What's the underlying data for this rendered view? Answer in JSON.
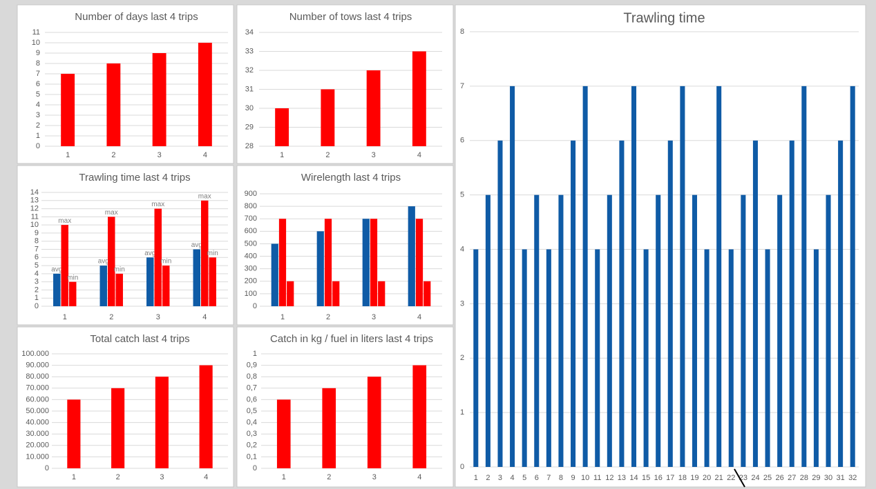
{
  "chart_data": [
    {
      "type": "bar",
      "title": "Number of days last 4 trips",
      "categories": [
        "1",
        "2",
        "3",
        "4"
      ],
      "values": [
        7,
        8,
        9,
        10
      ],
      "color": "#ff0000",
      "ylim": [
        0,
        11
      ],
      "yticks": [
        0,
        1,
        2,
        3,
        4,
        5,
        6,
        7,
        8,
        9,
        10,
        11
      ],
      "grid": true
    },
    {
      "type": "bar",
      "title": "Number of tows last 4 trips",
      "categories": [
        "1",
        "2",
        "3",
        "4"
      ],
      "values": [
        30,
        31,
        32,
        33
      ],
      "color": "#ff0000",
      "ylim": [
        28,
        34
      ],
      "yticks": [
        28,
        29,
        30,
        31,
        32,
        33,
        34
      ],
      "grid": true
    },
    {
      "type": "grouped-bar",
      "title": "Trawling time last 4 trips",
      "categories": [
        "1",
        "2",
        "3",
        "4"
      ],
      "series": [
        {
          "name": "avg",
          "color": "#0f5ba6",
          "values": [
            4,
            5,
            6,
            7
          ]
        },
        {
          "name": "max",
          "color": "#ff0000",
          "values": [
            10,
            11,
            12,
            13
          ]
        },
        {
          "name": "min",
          "color": "#ff0000",
          "values": [
            3,
            4,
            5,
            6
          ]
        }
      ],
      "ylim": [
        0,
        14
      ],
      "yticks": [
        0,
        1,
        2,
        3,
        4,
        5,
        6,
        7,
        8,
        9,
        10,
        11,
        12,
        13,
        14
      ],
      "grid": true
    },
    {
      "type": "grouped-bar",
      "title": "Wirelength last 4 trips",
      "categories": [
        "1",
        "2",
        "3",
        "4"
      ],
      "series": [
        {
          "color": "#0f5ba6",
          "values": [
            500,
            600,
            700,
            800
          ]
        },
        {
          "color": "#ff0000",
          "values": [
            700,
            700,
            700,
            700
          ]
        },
        {
          "color": "#ff0000",
          "values": [
            200,
            200,
            200,
            200
          ]
        }
      ],
      "ylim": [
        0,
        900
      ],
      "yticks": [
        0,
        100,
        200,
        300,
        400,
        500,
        600,
        700,
        800,
        900
      ],
      "grid": true
    },
    {
      "type": "bar",
      "title": "Total catch last 4 trips",
      "categories": [
        "1",
        "2",
        "3",
        "4"
      ],
      "values": [
        60000,
        70000,
        80000,
        90000
      ],
      "color": "#ff0000",
      "ylim": [
        0,
        100000
      ],
      "yticks": [
        0,
        {
          "value": 10000,
          "label": "10.000"
        },
        {
          "value": 20000,
          "label": "20.000"
        },
        {
          "value": 30000,
          "label": "30.000"
        },
        {
          "value": 40000,
          "label": "40.000"
        },
        {
          "value": 50000,
          "label": "50.000"
        },
        {
          "value": 60000,
          "label": "60.000"
        },
        {
          "value": 70000,
          "label": "70.000"
        },
        {
          "value": 80000,
          "label": "80.000"
        },
        {
          "value": 90000,
          "label": "90.000"
        },
        {
          "value": 100000,
          "label": "100.000"
        }
      ],
      "grid": true
    },
    {
      "type": "bar",
      "title": "Catch in kg / fuel in liters last 4 trips",
      "categories": [
        "1",
        "2",
        "3",
        "4"
      ],
      "values": [
        0.6,
        0.7,
        0.8,
        0.9
      ],
      "color": "#ff0000",
      "ylim": [
        0,
        1
      ],
      "yticks": [
        0,
        {
          "value": 0.1,
          "label": "0,1"
        },
        {
          "value": 0.2,
          "label": "0,2"
        },
        {
          "value": 0.3,
          "label": "0,3"
        },
        {
          "value": 0.4,
          "label": "0,4"
        },
        {
          "value": 0.5,
          "label": "0,5"
        },
        {
          "value": 0.6,
          "label": "0,6"
        },
        {
          "value": 0.7,
          "label": "0,7"
        },
        {
          "value": 0.8,
          "label": "0,8"
        },
        {
          "value": 0.9,
          "label": "0,9"
        },
        1
      ],
      "grid": true
    },
    {
      "type": "bar",
      "title": "Trawling time",
      "categories": [
        "1",
        "2",
        "3",
        "4",
        "5",
        "6",
        "7",
        "8",
        "9",
        "10",
        "11",
        "12",
        "13",
        "14",
        "15",
        "16",
        "17",
        "18",
        "19",
        "20",
        "21",
        "22",
        "23",
        "24",
        "25",
        "26",
        "27",
        "28",
        "29",
        "30",
        "31",
        "32"
      ],
      "values": [
        4,
        5,
        6,
        7,
        4,
        5,
        4,
        5,
        6,
        7,
        4,
        5,
        6,
        7,
        4,
        5,
        6,
        7,
        5,
        4,
        7,
        4,
        5,
        6,
        4,
        5,
        6,
        7,
        4,
        5,
        6,
        7
      ],
      "color": "#0f5ba6",
      "ylim": [
        0,
        8
      ],
      "yticks": [
        0,
        1,
        2,
        3,
        4,
        5,
        6,
        7,
        8
      ],
      "grid": true
    }
  ]
}
